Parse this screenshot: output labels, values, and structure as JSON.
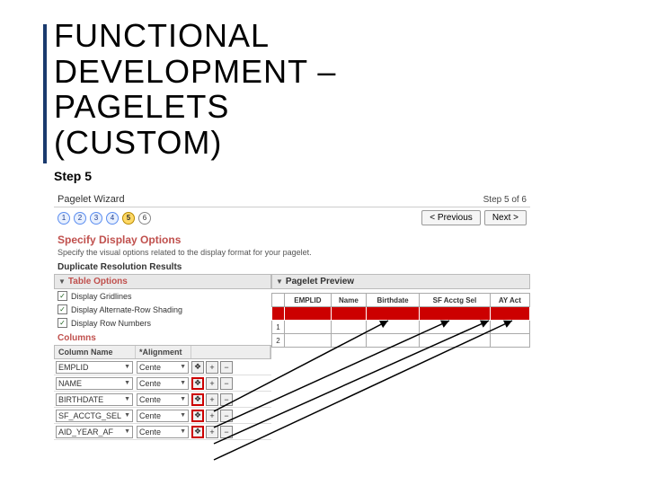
{
  "title_line1": "FUNCTIONAL",
  "title_line2": "DEVELOPMENT –",
  "title_line3": "PAGELETS",
  "title_line4": "(CUSTOM)",
  "subtitle": "Step 5",
  "header": {
    "title": "Pagelet Wizard",
    "step": "Step 5 of 6"
  },
  "nav": {
    "prev": "< Previous",
    "next": "Next >"
  },
  "steps": [
    "1",
    "2",
    "3",
    "4",
    "5",
    "6"
  ],
  "active_step": 5,
  "section_heading": "Specify Display Options",
  "description": "Specify the visual options related to the display format for your pagelet.",
  "sub_heading": "Duplicate Resolution Results",
  "panel_table": "Table Options",
  "panel_preview": "Pagelet Preview",
  "checkboxes": [
    {
      "label": "Display Gridlines",
      "checked": true
    },
    {
      "label": "Display Alternate-Row Shading",
      "checked": true
    },
    {
      "label": "Display Row Numbers",
      "checked": true
    }
  ],
  "columns_title": "Columns",
  "col_headers": {
    "name": "Column Name",
    "align": "*Alignment"
  },
  "col_rows": [
    {
      "name": "EMPLID",
      "align": "Cente",
      "hl": false
    },
    {
      "name": "NAME",
      "align": "Cente",
      "hl": true
    },
    {
      "name": "BIRTHDATE",
      "align": "Cente",
      "hl": true
    },
    {
      "name": "SF_ACCTG_SEL",
      "align": "Cente",
      "hl": true
    },
    {
      "name": "AID_YEAR_AF",
      "align": "Cente",
      "hl": true
    }
  ],
  "preview_headers": [
    "",
    "EMPLID",
    "Name",
    "Birthdate",
    "SF Acctg Sel",
    "AY Act"
  ],
  "preview_rows": [
    "1",
    "2"
  ],
  "colors": {
    "accent": "#1a3a6e",
    "brand_red": "#c0504d",
    "hl_red": "#cc0000",
    "fill_red": "#cc0000"
  }
}
